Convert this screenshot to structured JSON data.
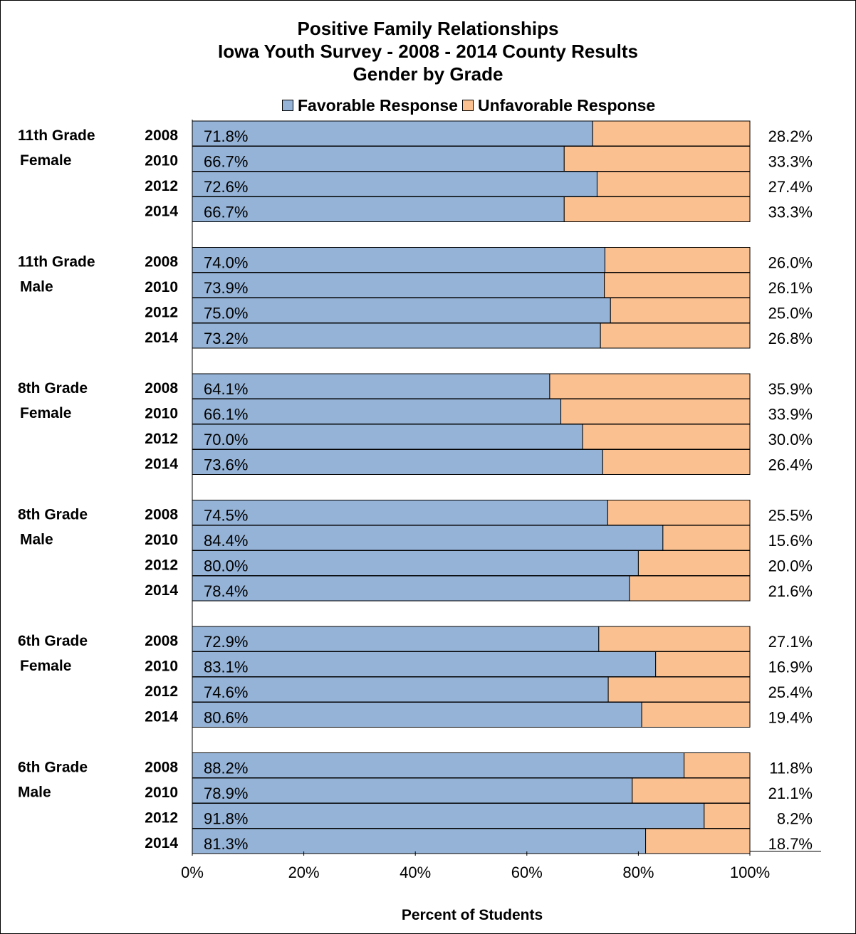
{
  "chart_data": {
    "type": "bar",
    "stacked": true,
    "orientation": "horizontal",
    "title": "Positive Family Relationships",
    "subtitle": "Iowa Youth Survey - 2008 - 2014 County Results",
    "subtitle2": "Gender by Grade",
    "xlabel": "Percent of Students",
    "xlim": [
      0,
      100
    ],
    "x_ticks": [
      "0%",
      "20%",
      "40%",
      "60%",
      "80%",
      "100%"
    ],
    "legend": {
      "position": "top",
      "entries": [
        "Favorable Response",
        "Unfavorable Response"
      ]
    },
    "colors": {
      "favorable": "#95B3D7",
      "unfavorable": "#FAC090"
    },
    "groups": [
      {
        "label_line1": "11th Grade",
        "label_line2": "Female",
        "years": [
          "2008",
          "2010",
          "2012",
          "2014"
        ],
        "favorable": [
          71.8,
          66.7,
          72.6,
          66.7
        ],
        "unfavorable": [
          28.2,
          33.3,
          27.4,
          33.3
        ]
      },
      {
        "label_line1": "11th Grade",
        "label_line2": "Male",
        "years": [
          "2008",
          "2010",
          "2012",
          "2014"
        ],
        "favorable": [
          74.0,
          73.9,
          75.0,
          73.2
        ],
        "unfavorable": [
          26.0,
          26.1,
          25.0,
          26.8
        ]
      },
      {
        "label_line1": "8th Grade",
        "label_line2": "Female",
        "years": [
          "2008",
          "2010",
          "2012",
          "2014"
        ],
        "favorable": [
          64.1,
          66.1,
          70.0,
          73.6
        ],
        "unfavorable": [
          35.9,
          33.9,
          30.0,
          26.4
        ]
      },
      {
        "label_line1": "8th Grade",
        "label_line2": "Male",
        "years": [
          "2008",
          "2010",
          "2012",
          "2014"
        ],
        "favorable": [
          74.5,
          84.4,
          80.0,
          78.4
        ],
        "unfavorable": [
          25.5,
          15.6,
          20.0,
          21.6
        ]
      },
      {
        "label_line1": "6th Grade",
        "label_line2": "Female",
        "years": [
          "2008",
          "2010",
          "2012",
          "2014"
        ],
        "favorable": [
          72.9,
          83.1,
          74.6,
          80.6
        ],
        "unfavorable": [
          27.1,
          16.9,
          25.4,
          19.4
        ]
      },
      {
        "label_line1": "6th Grade",
        "label_line2": "Male",
        "years": [
          "2008",
          "2010",
          "2012",
          "2014"
        ],
        "favorable": [
          88.2,
          78.9,
          91.8,
          81.3
        ],
        "unfavorable": [
          11.8,
          21.1,
          8.2,
          18.7
        ]
      }
    ]
  }
}
